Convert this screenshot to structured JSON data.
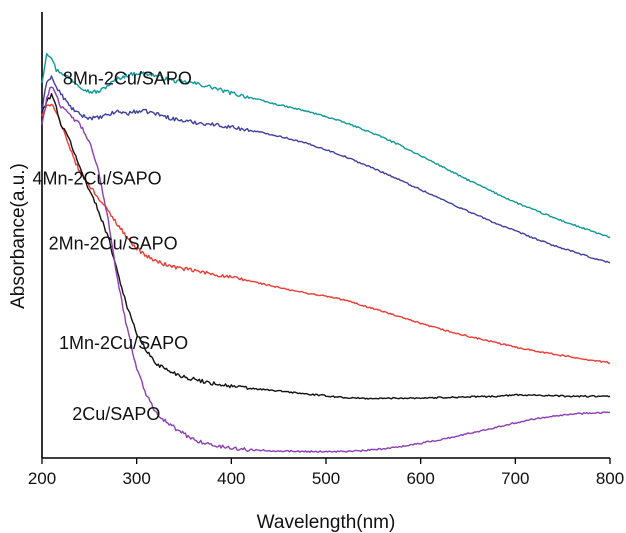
{
  "chart_data": {
    "type": "line",
    "title": "",
    "xlabel": "Wavelength(nm)",
    "ylabel": "Absorbance(a.u.)",
    "xlim": [
      200,
      800
    ],
    "ylim": [
      0,
      1
    ],
    "y_ticks_shown": false,
    "grid": false,
    "legend": "inline labels on curves",
    "x_ticks": [
      "200",
      "300",
      "400",
      "500",
      "600",
      "700",
      "800"
    ],
    "series": [
      {
        "name": "8Mn-2Cu/SAPO",
        "color": "#0e9999",
        "label_at": [
          222,
          0.852
        ],
        "x": [
          200,
          205,
          210,
          215,
          220,
          230,
          240,
          250,
          260,
          270,
          280,
          290,
          300,
          310,
          320,
          330,
          340,
          350,
          360,
          370,
          380,
          390,
          400,
          420,
          440,
          460,
          480,
          500,
          520,
          540,
          560,
          580,
          600,
          620,
          640,
          660,
          680,
          700,
          720,
          740,
          760,
          780,
          800
        ],
        "y": [
          0.858,
          0.925,
          0.915,
          0.885,
          0.88,
          0.865,
          0.848,
          0.835,
          0.835,
          0.85,
          0.865,
          0.873,
          0.878,
          0.877,
          0.872,
          0.865,
          0.86,
          0.857,
          0.855,
          0.85,
          0.845,
          0.838,
          0.832,
          0.822,
          0.81,
          0.8,
          0.79,
          0.778,
          0.764,
          0.748,
          0.73,
          0.71,
          0.688,
          0.666,
          0.643,
          0.622,
          0.601,
          0.581,
          0.563,
          0.546,
          0.53,
          0.515,
          0.5
        ]
      },
      {
        "name": "4Mn-2Cu/SAPO",
        "color": "#3f3f9f",
        "label_at": [
          190,
          0.622
        ],
        "x": [
          200,
          205,
          210,
          215,
          220,
          230,
          240,
          250,
          260,
          270,
          280,
          290,
          300,
          310,
          320,
          330,
          340,
          350,
          360,
          380,
          400,
          420,
          440,
          460,
          480,
          500,
          520,
          540,
          560,
          580,
          600,
          620,
          640,
          660,
          680,
          700,
          720,
          740,
          760,
          780,
          800
        ],
        "y": [
          0.79,
          0.86,
          0.87,
          0.845,
          0.83,
          0.8,
          0.782,
          0.775,
          0.775,
          0.782,
          0.79,
          0.785,
          0.79,
          0.79,
          0.785,
          0.778,
          0.772,
          0.768,
          0.765,
          0.76,
          0.754,
          0.746,
          0.738,
          0.728,
          0.716,
          0.702,
          0.686,
          0.668,
          0.65,
          0.63,
          0.61,
          0.59,
          0.57,
          0.551,
          0.532,
          0.515,
          0.498,
          0.482,
          0.468,
          0.454,
          0.442
        ]
      },
      {
        "name": "2Mn-2Cu/SAPO",
        "color": "#ee3b33",
        "label_at": [
          207,
          0.472
        ],
        "x": [
          200,
          205,
          210,
          215,
          220,
          225,
          230,
          240,
          250,
          260,
          270,
          280,
          290,
          300,
          310,
          320,
          330,
          340,
          350,
          360,
          380,
          400,
          420,
          440,
          460,
          480,
          500,
          520,
          540,
          560,
          580,
          600,
          620,
          640,
          660,
          680,
          700,
          720,
          740,
          760,
          780,
          800
        ],
        "y": [
          0.78,
          0.8,
          0.81,
          0.79,
          0.76,
          0.73,
          0.7,
          0.65,
          0.62,
          0.59,
          0.56,
          0.53,
          0.5,
          0.475,
          0.458,
          0.446,
          0.438,
          0.432,
          0.428,
          0.424,
          0.416,
          0.408,
          0.4,
          0.39,
          0.38,
          0.372,
          0.365,
          0.356,
          0.343,
          0.33,
          0.316,
          0.302,
          0.29,
          0.278,
          0.268,
          0.258,
          0.248,
          0.24,
          0.232,
          0.225,
          0.218,
          0.212
        ]
      },
      {
        "name": "1Mn-2Cu/SAPO",
        "color": "#111111",
        "label_at": [
          218,
          0.244
        ],
        "x": [
          200,
          205,
          210,
          215,
          220,
          225,
          230,
          240,
          250,
          260,
          270,
          280,
          290,
          300,
          310,
          320,
          330,
          340,
          350,
          360,
          380,
          400,
          420,
          440,
          460,
          480,
          500,
          520,
          540,
          560,
          580,
          600,
          620,
          640,
          660,
          680,
          700,
          720,
          740,
          760,
          780,
          800
        ],
        "y": [
          0.79,
          0.81,
          0.83,
          0.8,
          0.76,
          0.74,
          0.72,
          0.66,
          0.61,
          0.56,
          0.5,
          0.42,
          0.34,
          0.28,
          0.24,
          0.212,
          0.198,
          0.188,
          0.18,
          0.174,
          0.165,
          0.158,
          0.153,
          0.149,
          0.145,
          0.14,
          0.136,
          0.132,
          0.13,
          0.13,
          0.131,
          0.131,
          0.132,
          0.133,
          0.134,
          0.135,
          0.138,
          0.138,
          0.136,
          0.135,
          0.135,
          0.135
        ]
      },
      {
        "name": "2Cu/SAPO",
        "color": "#8b3fb3",
        "label_at": [
          232,
          0.08
        ],
        "x": [
          200,
          205,
          210,
          215,
          220,
          225,
          230,
          240,
          250,
          260,
          270,
          280,
          290,
          300,
          310,
          320,
          330,
          340,
          350,
          360,
          380,
          400,
          420,
          440,
          460,
          480,
          500,
          520,
          540,
          560,
          580,
          600,
          620,
          640,
          660,
          680,
          700,
          720,
          740,
          760,
          780,
          800
        ],
        "y": [
          0.76,
          0.82,
          0.85,
          0.83,
          0.8,
          0.79,
          0.78,
          0.76,
          0.72,
          0.65,
          0.54,
          0.4,
          0.29,
          0.2,
          0.14,
          0.1,
          0.078,
          0.062,
          0.048,
          0.036,
          0.022,
          0.016,
          0.012,
          0.01,
          0.009,
          0.008,
          0.008,
          0.008,
          0.01,
          0.014,
          0.02,
          0.027,
          0.035,
          0.044,
          0.054,
          0.064,
          0.074,
          0.083,
          0.09,
          0.094,
          0.097,
          0.098
        ]
      }
    ]
  }
}
